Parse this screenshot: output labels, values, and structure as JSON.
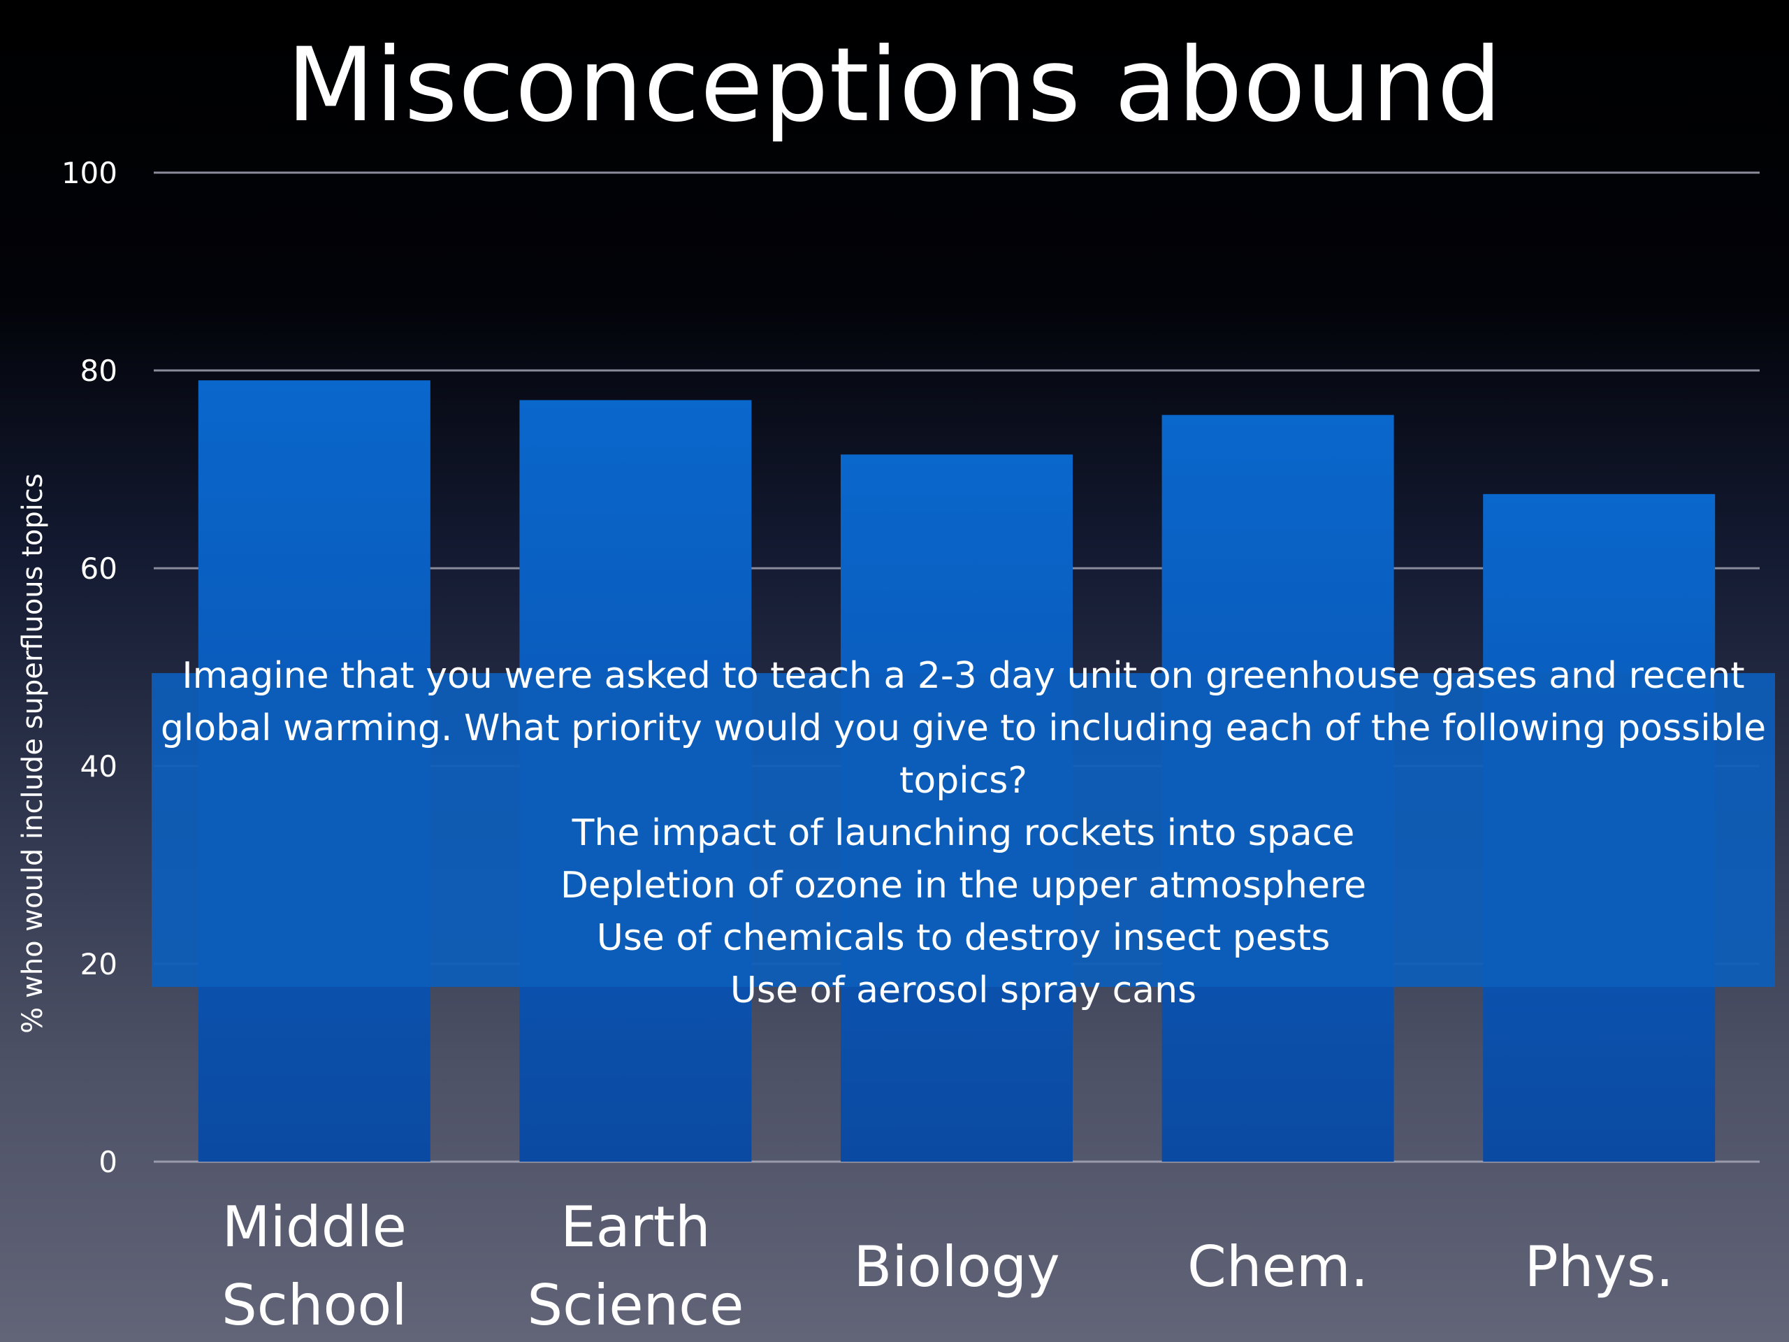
{
  "title": "Misconceptions abound",
  "chart_data": {
    "type": "bar",
    "categories": [
      [
        "Middle",
        "School"
      ],
      [
        "Earth",
        "Science"
      ],
      [
        "Biology"
      ],
      [
        "Chem."
      ],
      [
        "Phys."
      ]
    ],
    "values": [
      79,
      77,
      71.5,
      75.5,
      67.5
    ],
    "ylabel": "% who would include superfluous topics",
    "xlabel": "",
    "ylim": [
      0,
      100
    ],
    "yticks": [
      0,
      20,
      40,
      60,
      80,
      100
    ],
    "grid": true,
    "bar_color": "#0a5fc0"
  },
  "question": {
    "lines": [
      "Imagine that you were asked to teach a 2-3 day unit on greenhouse gases and recent",
      "global warming. What priority would you give to including each of the following possible",
      "topics?",
      "The impact of launching rockets into space",
      "Depletion of ozone in the upper atmosphere",
      "Use of chemicals to destroy insect pests",
      "Use of aerosol spray cans"
    ]
  }
}
